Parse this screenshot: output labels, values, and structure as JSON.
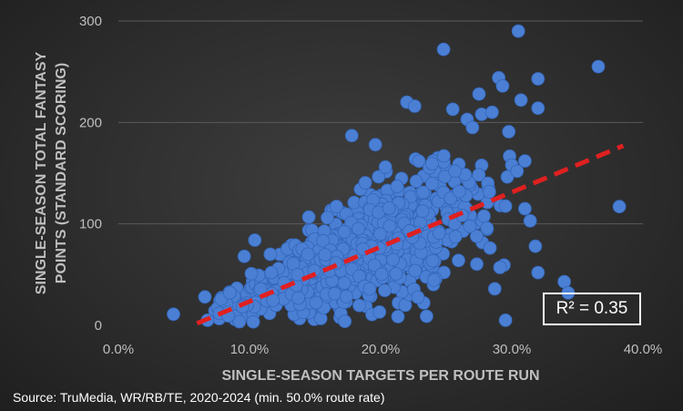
{
  "chart_data": {
    "type": "scatter",
    "title": "",
    "xlabel": "SINGLE-SEASON TARGETS PER ROUTE RUN",
    "ylabel_lines": [
      "SINGLE-SEASON TOTAL FANTASY",
      "POINTS (STANDARD SCORING)"
    ],
    "xlim": [
      0,
      0.4
    ],
    "ylim": [
      0,
      300
    ],
    "x_ticks": [
      0,
      0.1,
      0.2,
      0.3,
      0.4
    ],
    "x_tick_labels": [
      "0.0%",
      "10.0%",
      "20.0%",
      "30.0%",
      "40.0%"
    ],
    "y_ticks": [
      0,
      100,
      200,
      300
    ],
    "y_tick_labels": [
      "0",
      "100",
      "200",
      "300"
    ],
    "grid": true,
    "point_color": "#4a7fd4",
    "trendline": {
      "x": [
        0.06,
        0.385
      ],
      "y": [
        2,
        177
      ],
      "color": "#e02020",
      "style": "dashed"
    },
    "annotation": "R² = 0.35",
    "notable_points": [
      {
        "x": 0.042,
        "y": 11
      },
      {
        "x": 0.066,
        "y": 28
      },
      {
        "x": 0.068,
        "y": 5
      },
      {
        "x": 0.096,
        "y": 68
      },
      {
        "x": 0.104,
        "y": 84
      },
      {
        "x": 0.178,
        "y": 187
      },
      {
        "x": 0.196,
        "y": 178
      },
      {
        "x": 0.22,
        "y": 220
      },
      {
        "x": 0.226,
        "y": 216
      },
      {
        "x": 0.248,
        "y": 272
      },
      {
        "x": 0.255,
        "y": 213
      },
      {
        "x": 0.266,
        "y": 203
      },
      {
        "x": 0.27,
        "y": 195
      },
      {
        "x": 0.275,
        "y": 228
      },
      {
        "x": 0.277,
        "y": 208
      },
      {
        "x": 0.285,
        "y": 210
      },
      {
        "x": 0.29,
        "y": 244
      },
      {
        "x": 0.293,
        "y": 236
      },
      {
        "x": 0.305,
        "y": 290
      },
      {
        "x": 0.307,
        "y": 222
      },
      {
        "x": 0.31,
        "y": 162
      },
      {
        "x": 0.32,
        "y": 243
      },
      {
        "x": 0.32,
        "y": 214
      },
      {
        "x": 0.3,
        "y": 158
      },
      {
        "x": 0.304,
        "y": 152
      },
      {
        "x": 0.31,
        "y": 115
      },
      {
        "x": 0.314,
        "y": 103
      },
      {
        "x": 0.318,
        "y": 78
      },
      {
        "x": 0.32,
        "y": 52
      },
      {
        "x": 0.34,
        "y": 43
      },
      {
        "x": 0.343,
        "y": 32
      },
      {
        "x": 0.366,
        "y": 255
      },
      {
        "x": 0.382,
        "y": 117
      },
      {
        "x": 0.235,
        "y": 9
      },
      {
        "x": 0.291,
        "y": 57
      },
      {
        "x": 0.287,
        "y": 36
      }
    ],
    "cluster_seed": 20240,
    "cluster_count": 900
  },
  "source": "Source: TruMedia, WR/RB/TE, 2020-2024 (min. 50.0% route rate)"
}
